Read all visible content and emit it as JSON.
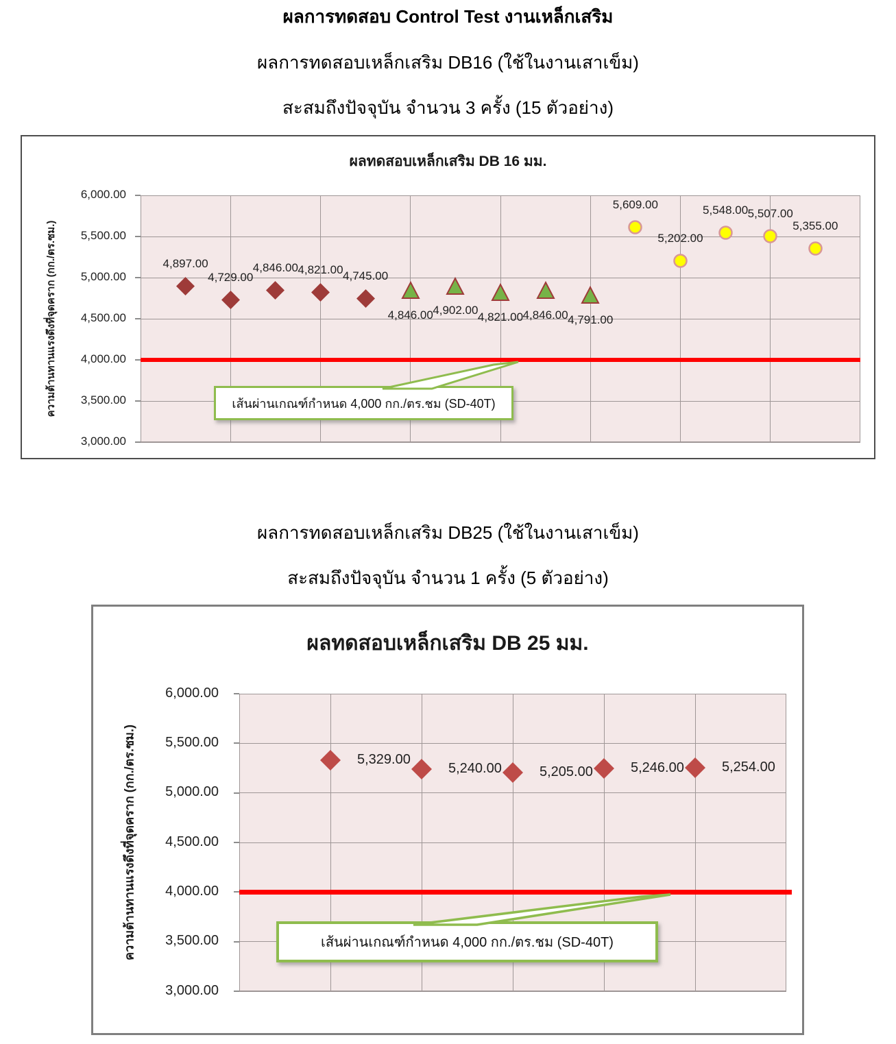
{
  "header": {
    "line1": "ผลการทดสอบ Control Test งานเหล็กเสริม",
    "line2": "ผลการทดสอบเหล็กเสริม DB16 (ใช้ในงานเสาเข็ม)",
    "line3": "สะสมถึงปัจจุบัน จำนวน 3 ครั้ง (15 ตัวอย่าง)"
  },
  "section2": {
    "line1": "ผลการทดสอบเหล็กเสริม DB25 (ใช้ในงานเสาเข็ม)",
    "line2": "สะสมถึงปัจจุบัน จำนวน 1 ครั้ง (5 ตัวอย่าง)"
  },
  "colors": {
    "plot_bg": "#F4E8E8",
    "gridline": "#9E9696",
    "axis": "#8C8C8C",
    "ref_line": "#FF0000",
    "callout_border": "#8FBC4E",
    "diamond_db16": "#9E3B39",
    "triangle_fill": "#76B347",
    "triangle_stroke": "#9E3B39",
    "circle_fill": "#FFFF00",
    "circle_stroke": "#D99795",
    "diamond_db25": "#BE4B48"
  },
  "chart_data": [
    {
      "type": "scatter",
      "title": "ผลทดสอบเหล็กเสริม DB 16 มม.",
      "ylabel": "ความต้านทานแรงดึงที่จุดคราก  (กก./ตร.ซม.)",
      "ylim": [
        3000,
        6000
      ],
      "xlim": [
        0,
        16
      ],
      "x_gridline_step": 2,
      "grid": true,
      "legend": "none",
      "yticks": [
        {
          "value": 6000,
          "label": "6,000.00"
        },
        {
          "value": 5500,
          "label": "5,500.00"
        },
        {
          "value": 5000,
          "label": "5,000.00"
        },
        {
          "value": 4500,
          "label": "4,500.00"
        },
        {
          "value": 4000,
          "label": "4,000.00"
        },
        {
          "value": 3500,
          "label": "3,500.00"
        },
        {
          "value": 3000,
          "label": "3,000.00"
        }
      ],
      "series": [
        {
          "marker": "diamond",
          "fill": "#9E3B39",
          "stroke": "#9E3B39",
          "x": [
            1,
            2,
            3,
            4,
            5
          ],
          "y": [
            4897,
            4729,
            4846,
            4821,
            4745
          ],
          "labels": [
            "4,897.00",
            "4,729.00",
            "4,846.00",
            "4,821.00",
            "4,745.00"
          ],
          "label_position": "above"
        },
        {
          "marker": "triangle",
          "fill": "#76B347",
          "stroke": "#9E3B39",
          "x": [
            6,
            7,
            8,
            9,
            10
          ],
          "y": [
            4846,
            4902,
            4821,
            4846,
            4791
          ],
          "labels": [
            "4,846.00",
            "4,902.00",
            "4,821.00",
            "4,846.00",
            "4,791.00"
          ],
          "label_position": "below"
        },
        {
          "marker": "circle",
          "fill": "#FFFF00",
          "stroke": "#D99795",
          "x": [
            11,
            12,
            13,
            14,
            15
          ],
          "y": [
            5609,
            5202,
            5548,
            5507,
            5355
          ],
          "labels": [
            "5,609.00",
            "5,202.00",
            "5,548.00",
            "5,507.00",
            "5,355.00"
          ],
          "label_position": "above"
        }
      ],
      "ref_line": {
        "value": 4000,
        "color": "#FF0000"
      },
      "callout": {
        "text": "เส้นผ่านเกณฑ์กำหนด 4,000  กก./ตร.ชม (SD-40T)"
      }
    },
    {
      "type": "scatter",
      "title": "ผลทดสอบเหล็กเสริม DB 25 มม.",
      "ylabel": "ความต้านทานแรงดึงที่จุดคราก  (กก./ตร.ซม.)",
      "ylim": [
        3000,
        6000
      ],
      "xlim": [
        0,
        6
      ],
      "x_gridline_step": 1,
      "grid": true,
      "legend": "none",
      "yticks": [
        {
          "value": 6000,
          "label": "6,000.00"
        },
        {
          "value": 5500,
          "label": "5,500.00"
        },
        {
          "value": 5000,
          "label": "5,000.00"
        },
        {
          "value": 4500,
          "label": "4,500.00"
        },
        {
          "value": 4000,
          "label": "4,000.00"
        },
        {
          "value": 3500,
          "label": "3,500.00"
        },
        {
          "value": 3000,
          "label": "3,000.00"
        }
      ],
      "series": [
        {
          "marker": "diamond",
          "fill": "#BE4B48",
          "stroke": "#BE4B48",
          "x": [
            1,
            2,
            3,
            4,
            5
          ],
          "y": [
            5329,
            5240,
            5205,
            5246,
            5254
          ],
          "labels": [
            "5,329.00",
            "5,240.00",
            "5,205.00",
            "5,246.00",
            "5,254.00"
          ],
          "label_position": "right"
        }
      ],
      "ref_line": {
        "value": 4000,
        "color": "#FF0000"
      },
      "callout": {
        "text": "เส้นผ่านเกณฑ์กำหนด 4,000  กก./ตร.ชม (SD-40T)"
      }
    }
  ]
}
